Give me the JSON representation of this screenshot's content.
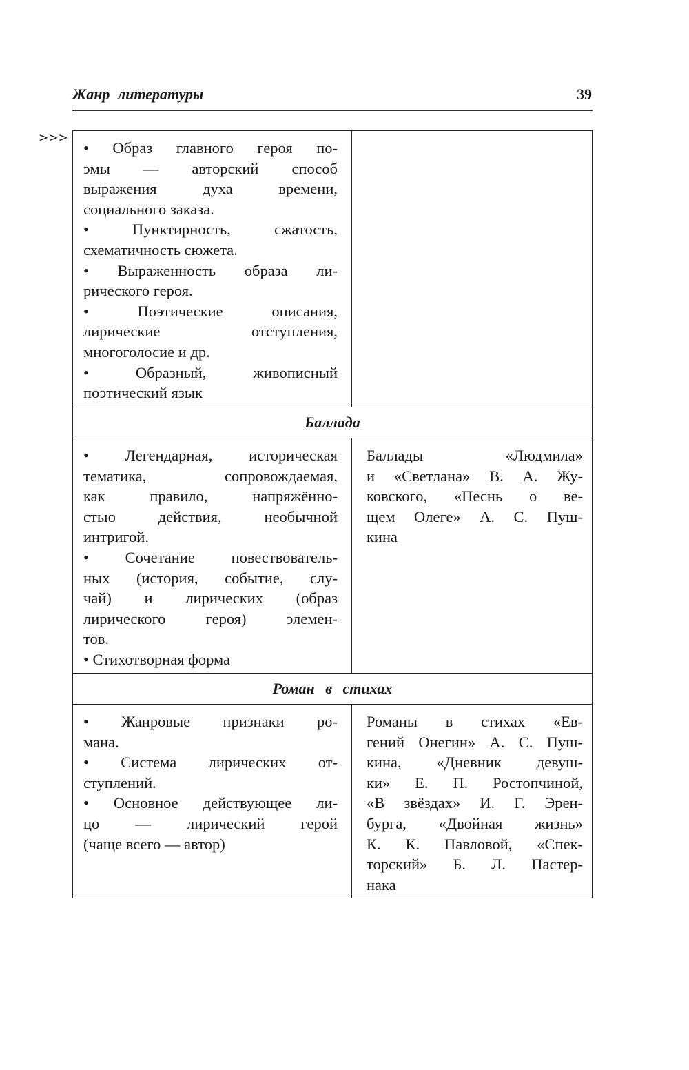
{
  "header": {
    "title": "Жанр литературы",
    "page_number": "39"
  },
  "continuation_mark": ">>>",
  "rows": [
    {
      "type": "content",
      "left": [
        [
          "• Образ главного героя по-",
          "эмы — авторский способ",
          "выражения духа времени,",
          "социального заказа."
        ],
        [
          "• Пунктирность, сжатость,",
          "схематичность сюжета."
        ],
        [
          "• Выраженность образа ли-",
          "рического героя."
        ],
        [
          "• Поэтические описания,",
          "лирические отступления,",
          "многоголосие и др."
        ],
        [
          "• Образный, живописный",
          "поэтический язык"
        ]
      ],
      "right": []
    },
    {
      "type": "section",
      "title": "Баллада"
    },
    {
      "type": "content",
      "left": [
        [
          "• Легендарная, историческая",
          "тематика, сопровождаемая,",
          "как правило, напряжённо-",
          "стью действия, необычной",
          "интригой."
        ],
        [
          "• Сочетание повествователь-",
          "ных (история, событие, слу-",
          "чай) и лирических (образ",
          "лирического героя) элемен-",
          "тов."
        ],
        [
          "• Стихотворная форма"
        ]
      ],
      "right": [
        [
          "Баллады «Людмила»",
          "и «Светлана» В. А. Жу-",
          "ковского, «Песнь о ве-",
          "щем Олеге» А. С. Пуш-",
          "кина"
        ]
      ]
    },
    {
      "type": "section",
      "title": "Роман в стихах"
    },
    {
      "type": "content",
      "left": [
        [
          "• Жанровые признаки ро-",
          "мана."
        ],
        [
          "• Система лирических от-",
          "ступлений."
        ],
        [
          "• Основное действующее ли-",
          "цо — лирический герой",
          "(чаще всего — автор)"
        ]
      ],
      "right": [
        [
          "Романы в стихах «Ев-",
          "гений Онегин» А. С. Пуш-",
          "кина, «Дневник девуш-",
          "ки» Е. П. Ростопчиной,",
          "«В звёздах» И. Г. Эрен-",
          "бурга, «Двойная жизнь»",
          "К. К. Павловой, «Спек-",
          "торский» Б. Л. Пастер-",
          "нака"
        ]
      ]
    }
  ]
}
